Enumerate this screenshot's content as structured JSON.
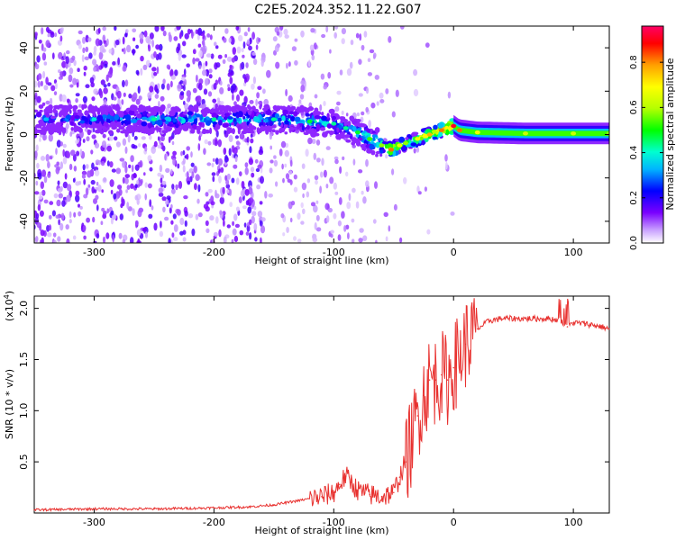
{
  "figure": {
    "title": "C2E5.2024.352.11.22.G07"
  },
  "chart_data": [
    {
      "type": "heatmap",
      "panel": "top",
      "xlabel": "Height of straight line (km)",
      "ylabel": "Frequency (Hz)",
      "xlim": [
        -350,
        130
      ],
      "ylim": [
        -50,
        50
      ],
      "x_ticks": [
        -300,
        -200,
        -100,
        0,
        100
      ],
      "y_ticks": [
        -40,
        -20,
        0,
        20,
        40
      ],
      "colorbar": {
        "label": "Normalized spectral amplitude",
        "range": [
          0.0,
          0.96
        ],
        "ticks": [
          0.0,
          0.2,
          0.4,
          0.6,
          0.8
        ],
        "tick_labels": [
          "0.0",
          "0.2",
          "0.4",
          "0.6",
          "0.8"
        ],
        "colormap": "rainbow"
      },
      "ridge": {
        "height_km": [
          -340,
          -300,
          -250,
          -200,
          -150,
          -120,
          -100,
          -90,
          -80,
          -70,
          -60,
          -52,
          -45,
          -40,
          -30,
          -20,
          -10,
          0,
          5,
          20,
          60,
          100,
          130
        ],
        "frequency_hz": [
          7,
          7,
          7,
          7,
          7,
          6,
          5,
          3,
          1,
          -2,
          -5,
          -7,
          -5,
          -4,
          -2,
          0,
          2,
          4,
          2,
          1,
          0.5,
          0.5,
          0.5
        ],
        "amplitude": [
          0.35,
          0.4,
          0.45,
          0.45,
          0.45,
          0.5,
          0.45,
          0.45,
          0.5,
          0.55,
          0.6,
          0.85,
          0.7,
          0.6,
          0.7,
          0.8,
          0.85,
          0.95,
          0.85,
          0.7,
          0.65,
          0.65,
          0.6
        ]
      },
      "grid": false
    },
    {
      "type": "line",
      "panel": "bottom",
      "xlabel": "Height of straight line (km)",
      "ylabel": "SNR (10 * v/v)",
      "multiplier_label": "(x10",
      "multiplier_exp": "4",
      "multiplier_close": ")",
      "xlim": [
        -350,
        130
      ],
      "ylim": [
        0,
        2.12
      ],
      "x_ticks": [
        -300,
        -200,
        -100,
        0,
        100
      ],
      "y_ticks": [
        0.5,
        1.0,
        1.5,
        2.0
      ],
      "y_tick_labels": [
        "0.5",
        "1.0",
        "1.5",
        "2.0"
      ],
      "color": "#e8312f",
      "series": [
        {
          "x": [
            -350,
            -300,
            -250,
            -200,
            -170,
            -150,
            -130,
            -110,
            -100,
            -95,
            -90,
            -85,
            -80,
            -70,
            -60,
            -50,
            -45,
            -40,
            -35,
            -30,
            -25,
            -20,
            -15,
            -10,
            -5,
            0,
            10,
            20,
            30,
            40,
            50,
            60,
            70,
            80,
            90,
            95,
            100,
            110,
            120,
            130
          ],
          "y": [
            0.03,
            0.04,
            0.04,
            0.05,
            0.06,
            0.08,
            0.12,
            0.16,
            0.2,
            0.28,
            0.36,
            0.3,
            0.22,
            0.18,
            0.16,
            0.2,
            0.35,
            0.5,
            0.7,
            0.95,
            1.15,
            1.3,
            1.3,
            1.35,
            1.3,
            1.42,
            1.65,
            1.8,
            1.88,
            1.9,
            1.9,
            1.9,
            1.9,
            1.9,
            1.88,
            1.82,
            1.86,
            1.85,
            1.83,
            1.8
          ]
        }
      ],
      "grid": false
    }
  ]
}
